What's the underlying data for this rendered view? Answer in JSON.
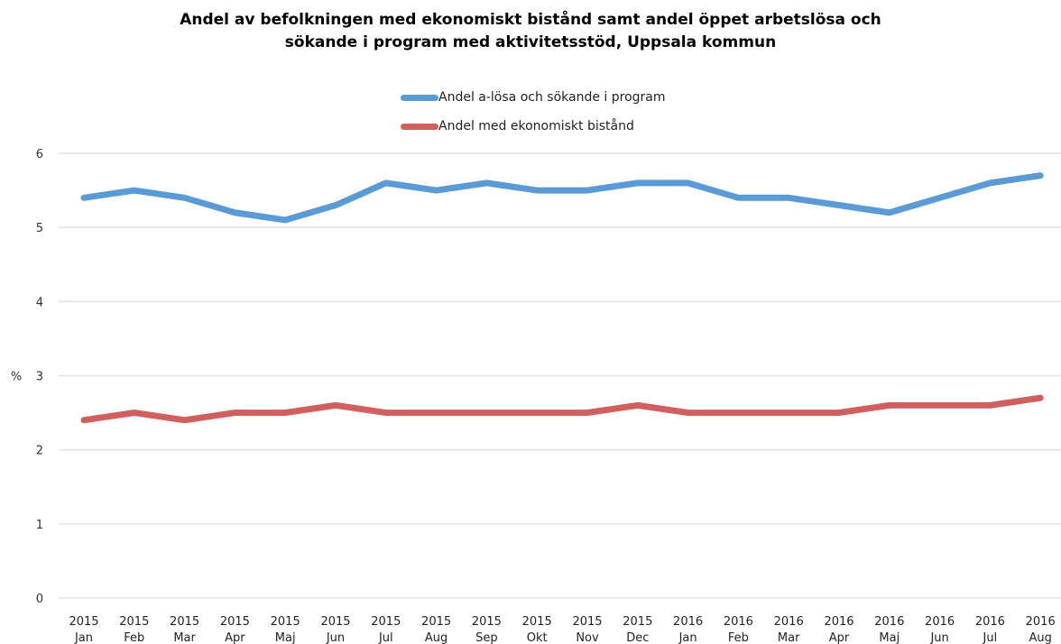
{
  "chart_data": {
    "type": "line",
    "title_lines": [
      "Andel av befolkningen med ekonomiskt bistånd samt andel öppet arbetslösa och",
      "sökande i program med aktivitetsstöd, Uppsala kommun"
    ],
    "ylabel": "%",
    "ylim": [
      0,
      6
    ],
    "yticks": [
      "0",
      "1",
      "2",
      "3",
      "4",
      "5",
      "6"
    ],
    "grid": true,
    "legend_position": "top-center",
    "categories": [
      [
        "2015",
        "Jan"
      ],
      [
        "2015",
        "Feb"
      ],
      [
        "2015",
        "Mar"
      ],
      [
        "2015",
        "Apr"
      ],
      [
        "2015",
        "Maj"
      ],
      [
        "2015",
        "Jun"
      ],
      [
        "2015",
        "Jul"
      ],
      [
        "2015",
        "Aug"
      ],
      [
        "2015",
        "Sep"
      ],
      [
        "2015",
        "Okt"
      ],
      [
        "2015",
        "Nov"
      ],
      [
        "2015",
        "Dec"
      ],
      [
        "2016",
        "Jan"
      ],
      [
        "2016",
        "Feb"
      ],
      [
        "2016",
        "Mar"
      ],
      [
        "2016",
        "Apr"
      ],
      [
        "2016",
        "Maj"
      ],
      [
        "2016",
        "Jun"
      ],
      [
        "2016",
        "Jul"
      ],
      [
        "2016",
        "Aug"
      ]
    ],
    "series": [
      {
        "name": "Andel a-lösa och sökande i program",
        "color": "#5b9bd5",
        "values": [
          5.4,
          5.5,
          5.4,
          5.2,
          5.1,
          5.3,
          5.6,
          5.5,
          5.6,
          5.5,
          5.5,
          5.6,
          5.6,
          5.4,
          5.4,
          5.3,
          5.2,
          5.4,
          5.6,
          5.7
        ]
      },
      {
        "name": "Andel med ekonomiskt bistånd",
        "color": "#d0605e",
        "values": [
          2.4,
          2.5,
          2.4,
          2.5,
          2.5,
          2.6,
          2.5,
          2.5,
          2.5,
          2.5,
          2.5,
          2.6,
          2.5,
          2.5,
          2.5,
          2.5,
          2.6,
          2.6,
          2.6,
          2.7
        ]
      }
    ]
  }
}
